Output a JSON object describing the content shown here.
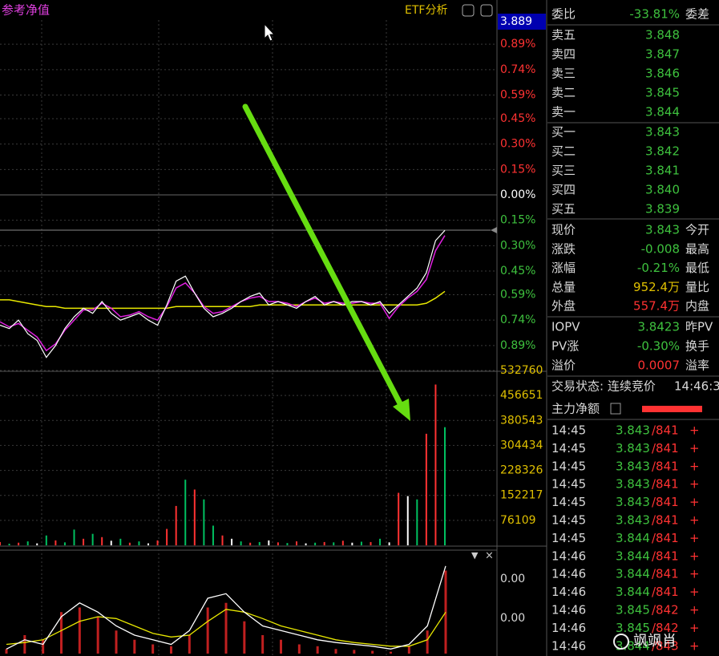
{
  "chart": {
    "header": "参考净值",
    "etf_button": "ETF分析",
    "top_price": "3.889",
    "ylim": [
      -1.04,
      1.04
    ],
    "pct_ticks": [
      {
        "value": 0.89,
        "label": "0.89%"
      },
      {
        "value": 0.74,
        "label": "0.74%"
      },
      {
        "value": 0.59,
        "label": "0.59%"
      },
      {
        "value": 0.45,
        "label": "0.45%"
      },
      {
        "value": 0.3,
        "label": "0.30%"
      },
      {
        "value": 0.15,
        "label": "0.15%"
      },
      {
        "value": 0,
        "label": "0.00%"
      },
      {
        "value": -0.15,
        "label": "0.15%"
      },
      {
        "value": -0.3,
        "label": "0.30%"
      },
      {
        "value": -0.45,
        "label": "0.45%"
      },
      {
        "value": -0.59,
        "label": "0.59%"
      },
      {
        "value": -0.74,
        "label": "0.74%"
      },
      {
        "value": -0.89,
        "label": "0.89%"
      }
    ],
    "price_line": [
      -0.77,
      -0.79,
      -0.74,
      -0.82,
      -0.86,
      -0.96,
      -0.89,
      -0.79,
      -0.72,
      -0.67,
      -0.7,
      -0.63,
      -0.7,
      -0.74,
      -0.72,
      -0.7,
      -0.74,
      -0.77,
      -0.65,
      -0.51,
      -0.48,
      -0.58,
      -0.67,
      -0.72,
      -0.7,
      -0.67,
      -0.63,
      -0.6,
      -0.58,
      -0.65,
      -0.63,
      -0.65,
      -0.67,
      -0.63,
      -0.6,
      -0.65,
      -0.63,
      -0.65,
      -0.63,
      -0.63,
      -0.65,
      -0.63,
      -0.7,
      -0.65,
      -0.6,
      -0.55,
      -0.46,
      -0.27,
      -0.21
    ],
    "nav_line": [
      -0.75,
      -0.78,
      -0.76,
      -0.8,
      -0.84,
      -0.92,
      -0.88,
      -0.8,
      -0.74,
      -0.68,
      -0.68,
      -0.64,
      -0.67,
      -0.72,
      -0.71,
      -0.69,
      -0.72,
      -0.74,
      -0.66,
      -0.55,
      -0.52,
      -0.58,
      -0.66,
      -0.7,
      -0.69,
      -0.66,
      -0.63,
      -0.61,
      -0.6,
      -0.63,
      -0.63,
      -0.64,
      -0.66,
      -0.63,
      -0.61,
      -0.64,
      -0.63,
      -0.64,
      -0.64,
      -0.63,
      -0.64,
      -0.64,
      -0.73,
      -0.66,
      -0.61,
      -0.57,
      -0.5,
      -0.33,
      -0.24
    ],
    "avg_line": [
      -0.62,
      -0.62,
      -0.63,
      -0.64,
      -0.65,
      -0.66,
      -0.66,
      -0.67,
      -0.67,
      -0.67,
      -0.67,
      -0.67,
      -0.67,
      -0.67,
      -0.67,
      -0.67,
      -0.67,
      -0.67,
      -0.67,
      -0.66,
      -0.66,
      -0.66,
      -0.66,
      -0.66,
      -0.66,
      -0.66,
      -0.66,
      -0.66,
      -0.65,
      -0.65,
      -0.65,
      -0.65,
      -0.65,
      -0.65,
      -0.65,
      -0.65,
      -0.65,
      -0.65,
      -0.65,
      -0.65,
      -0.65,
      -0.65,
      -0.65,
      -0.65,
      -0.65,
      -0.65,
      -0.64,
      -0.61,
      -0.57
    ],
    "price_color": "#ffffff",
    "nav_color": "#e020e0",
    "avg_color": "#e8e800",
    "volume_ylim": [
      0,
      532760
    ],
    "volume_ticks": [
      532760,
      456651,
      380543,
      304434,
      228326,
      152217,
      76109
    ],
    "volume": [
      10000,
      5000,
      8000,
      12000,
      6000,
      30000,
      15000,
      9000,
      48000,
      20000,
      35000,
      25000,
      14000,
      20000,
      8000,
      12000,
      6000,
      15000,
      50000,
      120000,
      200000,
      170000,
      140000,
      60000,
      30000,
      20000,
      12000,
      8000,
      10000,
      15000,
      9000,
      7000,
      12000,
      6000,
      8000,
      10000,
      9000,
      14000,
      8000,
      11000,
      10000,
      20000,
      9000,
      160000,
      150000,
      140000,
      340000,
      490000,
      360000
    ],
    "volume_colors": [
      "#ff3232",
      "#00c060",
      "#ff3232",
      "#00c060",
      "#ffffff",
      "#00c060",
      "#ff3232",
      "#00c060",
      "#00c060",
      "#ff3232",
      "#00c060",
      "#ff3232",
      "#ffffff",
      "#00c060",
      "#ff3232",
      "#00c060",
      "#ffffff",
      "#ff3232",
      "#ff3232",
      "#ff3232",
      "#00c060",
      "#ff3232",
      "#00c060",
      "#00c060",
      "#ff3232",
      "#ffffff",
      "#00c060",
      "#ff3232",
      "#00c060",
      "#ffffff",
      "#ff3232",
      "#00c060",
      "#ff3232",
      "#ffffff",
      "#00c060",
      "#ff3232",
      "#00c060",
      "#ff3232",
      "#ffffff",
      "#00c060",
      "#ff3232",
      "#00c060",
      "#ffffff",
      "#ff3232",
      "#ffffff",
      "#00c060",
      "#ff3232",
      "#ff3232",
      "#00c060"
    ],
    "indicator_ticks": [
      "0.00",
      "0.00"
    ],
    "indicator_ylim": [
      0,
      100
    ],
    "indicator_white": [
      5,
      15,
      10,
      40,
      55,
      45,
      30,
      20,
      15,
      10,
      25,
      60,
      65,
      45,
      30,
      25,
      20,
      15,
      12,
      10,
      8,
      5,
      10,
      30,
      95
    ],
    "indicator_yellow": [
      10,
      12,
      15,
      25,
      35,
      40,
      38,
      30,
      22,
      18,
      20,
      35,
      48,
      45,
      38,
      30,
      25,
      20,
      15,
      12,
      10,
      8,
      8,
      15,
      45
    ],
    "indicator_bars": [
      5,
      20,
      15,
      45,
      50,
      40,
      25,
      15,
      10,
      8,
      20,
      50,
      55,
      35,
      20,
      15,
      10,
      8,
      5,
      4,
      3,
      2,
      8,
      25,
      90
    ]
  },
  "panel": {
    "ratio_label": "委比",
    "ratio_value": "-33.81%",
    "diff_label": "委差",
    "asks": [
      {
        "label": "卖五",
        "price": "3.848"
      },
      {
        "label": "卖四",
        "price": "3.847"
      },
      {
        "label": "卖三",
        "price": "3.846"
      },
      {
        "label": "卖二",
        "price": "3.845"
      },
      {
        "label": "卖一",
        "price": "3.844"
      }
    ],
    "bids": [
      {
        "label": "买一",
        "price": "3.843"
      },
      {
        "label": "买二",
        "price": "3.842"
      },
      {
        "label": "买三",
        "price": "3.841"
      },
      {
        "label": "买四",
        "price": "3.840"
      },
      {
        "label": "买五",
        "price": "3.839"
      }
    ],
    "quote": [
      {
        "label": "现价",
        "value": "3.843",
        "label2": "今开"
      },
      {
        "label": "涨跌",
        "value": "-0.008",
        "label2": "最高"
      },
      {
        "label": "涨幅",
        "value": "-0.21%",
        "label2": "最低"
      },
      {
        "label": "总量",
        "value": "952.4万",
        "label2": "量比"
      },
      {
        "label": "外盘",
        "value": "557.4万",
        "label2": "内盘"
      }
    ],
    "iopv": [
      {
        "label": "IOPV",
        "value": "3.8423",
        "label2": "昨PV"
      },
      {
        "label": "PV涨",
        "value": "-0.30%",
        "label2": "换手"
      },
      {
        "label": "溢价",
        "value": "0.0007",
        "label2": "溢率"
      }
    ],
    "status": "交易状态: 连续竞价",
    "status_time": "14:46:3",
    "main_flow": "主力净额",
    "trades": [
      {
        "time": "14:45",
        "price": "3.843",
        "volume": "/841",
        "side": "+"
      },
      {
        "time": "14:45",
        "price": "3.843",
        "volume": "/841",
        "side": "+"
      },
      {
        "time": "14:45",
        "price": "3.843",
        "volume": "/841",
        "side": "+"
      },
      {
        "time": "14:45",
        "price": "3.843",
        "volume": "/841",
        "side": "+"
      },
      {
        "time": "14:45",
        "price": "3.843",
        "volume": "/841",
        "side": "+"
      },
      {
        "time": "14:45",
        "price": "3.843",
        "volume": "/841",
        "side": "+"
      },
      {
        "time": "14:45",
        "price": "3.844",
        "volume": "/841",
        "side": "+"
      },
      {
        "time": "14:46",
        "price": "3.844",
        "volume": "/841",
        "side": "+"
      },
      {
        "time": "14:46",
        "price": "3.844",
        "volume": "/841",
        "side": "+"
      },
      {
        "time": "14:46",
        "price": "3.844",
        "volume": "/841",
        "side": "+"
      },
      {
        "time": "14:46",
        "price": "3.845",
        "volume": "/842",
        "side": "+"
      },
      {
        "time": "14:46",
        "price": "3.845",
        "volume": "/842",
        "side": "+"
      },
      {
        "time": "14:46",
        "price": "3.844",
        "volume": "/843",
        "side": "+"
      }
    ],
    "watermark": "飒飒肖"
  }
}
